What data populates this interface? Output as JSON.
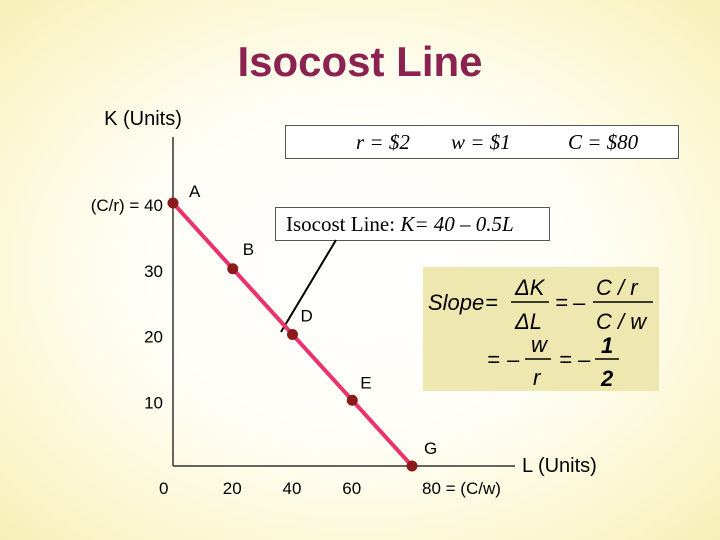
{
  "title": "Isocost Line",
  "params": {
    "r": "r = $2",
    "w": "w = $1",
    "c": "C = $80"
  },
  "equation": {
    "prefix": "Isocost Line: ",
    "formula": "K= 40 – 0.5L"
  },
  "slope": {
    "word": "Slope",
    "eq": "=",
    "minus": "–",
    "dK": "ΔK",
    "dL": "ΔL",
    "Cr": "C / r",
    "Cw": "C / w",
    "w": "w",
    "r": "r",
    "one": "1",
    "two": "2"
  },
  "colors": {
    "title": "#8b2250",
    "line": "#e8336f",
    "point": "#8b1a1a",
    "slope_bg": "#efe7b0"
  },
  "chart_data": {
    "type": "line",
    "title": "Isocost Line",
    "xlabel": "L (Units)",
    "ylabel": "K (Units)",
    "xlim": [
      0,
      80
    ],
    "ylim": [
      0,
      40
    ],
    "x_tick_labels": [
      "0",
      "20",
      "40",
      "60",
      "80 = (C/w)"
    ],
    "y_tick_labels": [
      "(C/r) = 40",
      "30",
      "20",
      "10"
    ],
    "series": [
      {
        "points": [
          {
            "label": "A",
            "x": 0,
            "y": 40
          },
          {
            "label": "B",
            "x": 20,
            "y": 30
          },
          {
            "label": "D",
            "x": 40,
            "y": 20
          },
          {
            "label": "E",
            "x": 60,
            "y": 10
          },
          {
            "label": "G",
            "x": 80,
            "y": 0
          }
        ]
      }
    ],
    "grid": false
  }
}
